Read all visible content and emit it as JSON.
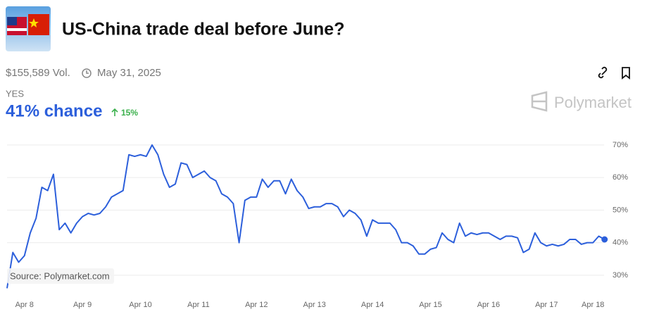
{
  "chart_data": {
    "type": "line",
    "title": "US-China trade deal before June?",
    "volume_label": "$155,589 Vol.",
    "end_date": "May 31, 2025",
    "outcome": "YES",
    "chance_label": "41% chance",
    "change_label": "15%",
    "brand": "Polymarket",
    "source": "Source: Polymarket.com",
    "categories": [
      null,
      null,
      null,
      "Apr 8",
      null,
      null,
      null,
      null,
      null,
      null,
      null,
      null,
      null,
      "Apr 9",
      null,
      null,
      null,
      null,
      null,
      null,
      null,
      null,
      null,
      "Apr 10",
      null,
      null,
      null,
      null,
      null,
      null,
      null,
      null,
      null,
      "Apr 11",
      null,
      null,
      null,
      null,
      null,
      null,
      null,
      null,
      null,
      "Apr 12",
      null,
      null,
      null,
      null,
      null,
      null,
      null,
      null,
      null,
      "Apr 13",
      null,
      null,
      null,
      null,
      null,
      null,
      null,
      null,
      null,
      "Apr 14",
      null,
      null,
      null,
      null,
      null,
      null,
      null,
      null,
      null,
      "Apr 15",
      null,
      null,
      null,
      null,
      null,
      null,
      null,
      null,
      null,
      "Apr 16",
      null,
      null,
      null,
      null,
      null,
      null,
      null,
      null,
      null,
      "Apr 17",
      null,
      null,
      null,
      null,
      null,
      null,
      null,
      "Apr 18",
      null,
      null
    ],
    "series": [
      {
        "name": "YES",
        "color": "#2c5fdb",
        "values": [
          26,
          37,
          34,
          36,
          43,
          47.5,
          57,
          56,
          61,
          44,
          46,
          43,
          46,
          48,
          49,
          48.5,
          49,
          51,
          54,
          55,
          56,
          67,
          66.5,
          67,
          66.5,
          70,
          67,
          61,
          57,
          58,
          64.5,
          64,
          60,
          61,
          62,
          60,
          59,
          55,
          54,
          52,
          40,
          53,
          54,
          54,
          59.5,
          57,
          59,
          59,
          55,
          59.5,
          56,
          54,
          50.5,
          51,
          51,
          52,
          52,
          51,
          48,
          50,
          49,
          47,
          42,
          47,
          46,
          46,
          46,
          44,
          40,
          40,
          39,
          36.5,
          36.5,
          38,
          38.5,
          43,
          41,
          40,
          46,
          42,
          43,
          42.5,
          43,
          43,
          42,
          41,
          42,
          42,
          41.5,
          37,
          38,
          43,
          40,
          39,
          39.5,
          39,
          39.5,
          41,
          41,
          39.5,
          40,
          40,
          42,
          41
        ]
      }
    ],
    "ylim": [
      25,
      73
    ],
    "yticks": [
      {
        "value": 30,
        "label": "30%"
      },
      {
        "value": 40,
        "label": "40%"
      },
      {
        "value": 50,
        "label": "50%"
      },
      {
        "value": 60,
        "label": "60%"
      },
      {
        "value": 70,
        "label": "70%"
      }
    ],
    "grid": true
  }
}
